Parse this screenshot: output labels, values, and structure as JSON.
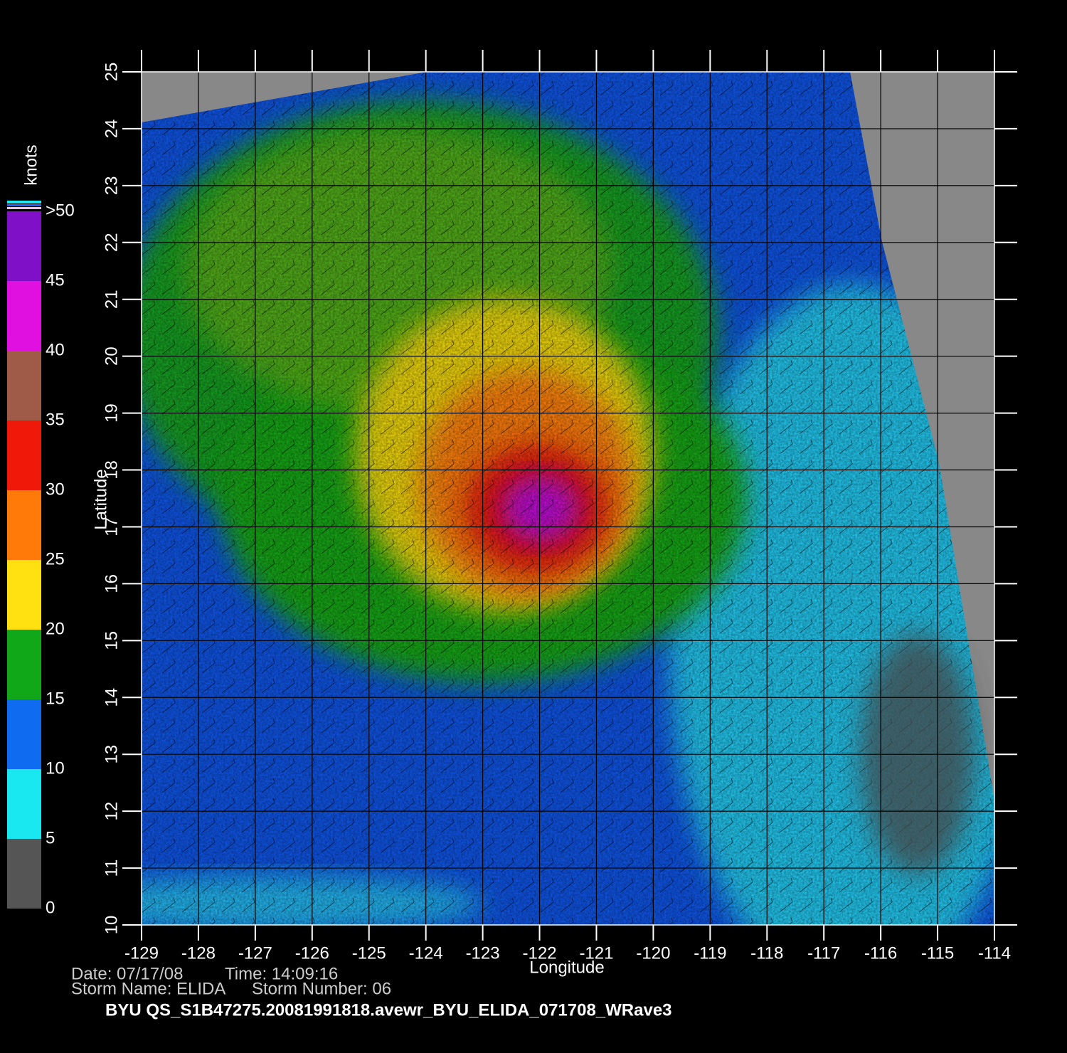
{
  "map": {
    "xlabel": "Longitude",
    "ylabel": "Latitude",
    "xlim": [
      -129,
      -114
    ],
    "ylim": [
      10,
      25
    ],
    "xticks": [
      -129,
      -128,
      -127,
      -126,
      -125,
      -124,
      -123,
      -122,
      -121,
      -120,
      -119,
      -118,
      -117,
      -116,
      -115,
      -114
    ],
    "yticks": [
      10,
      11,
      12,
      13,
      14,
      15,
      16,
      17,
      18,
      19,
      20,
      21,
      22,
      23,
      24,
      25
    ]
  },
  "colorbar": {
    "label": "knots",
    "lim": [
      0,
      50
    ],
    "ticks": [
      0,
      5,
      10,
      15,
      20,
      25,
      30,
      35,
      40,
      45,
      {
        "value": 50,
        "label": ">50"
      }
    ],
    "colors": [
      "#555555",
      "#1ae8f0",
      "#0f6cf0",
      "#10a818",
      "#ffe010",
      "#ff7a08",
      "#f01808",
      "#a05a48",
      "#e010e0",
      "#8010c8"
    ]
  },
  "info": {
    "date": "Date: 07/17/08",
    "time": "Time: 14:09:16",
    "storm_name": "Storm Name: ELIDA",
    "storm_number": "Storm Number: 06",
    "title": "BYU  QS_S1B47275.20081991818.avewr_BYU_ELIDA_071708_WRave3"
  }
}
